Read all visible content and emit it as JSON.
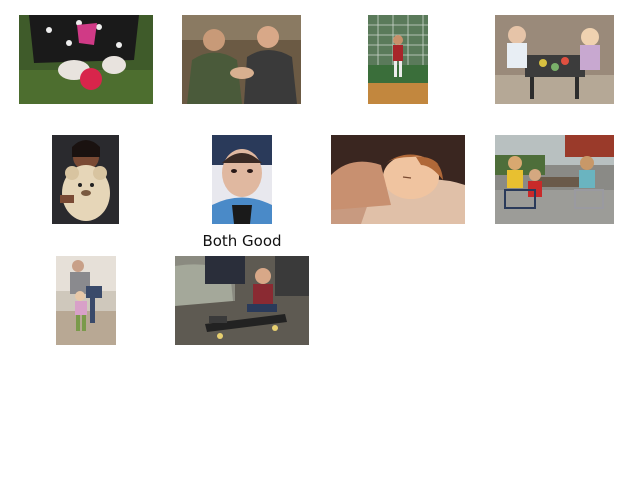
{
  "caption": "Both Good",
  "thumbnails": [
    {
      "name": "thumb-child-red-ball",
      "interactable": false
    },
    {
      "name": "thumb-two-men-handshake",
      "interactable": false
    },
    {
      "name": "thumb-kid-baseball-field",
      "interactable": false
    },
    {
      "name": "thumb-kids-eating-table",
      "interactable": false
    },
    {
      "name": "thumb-girl-teddy-bear",
      "interactable": false
    },
    {
      "name": "thumb-baby-portrait",
      "interactable": false
    },
    {
      "name": "thumb-boy-sleeping",
      "interactable": false
    },
    {
      "name": "thumb-kids-outdoor-table",
      "interactable": false
    },
    {
      "name": "thumb-man-toddler-walking",
      "interactable": false
    },
    {
      "name": "thumb-toddler-skateboard",
      "interactable": false
    }
  ]
}
